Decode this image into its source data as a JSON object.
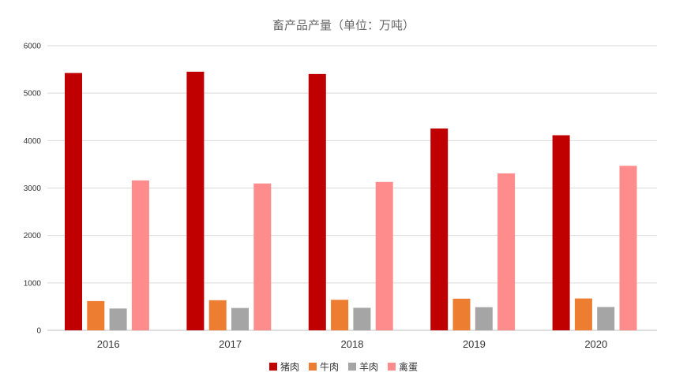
{
  "chart_data": {
    "type": "bar",
    "title": "畜产品产量（单位：万吨）",
    "categories": [
      "2016",
      "2017",
      "2018",
      "2019",
      "2020"
    ],
    "series": [
      {
        "name": "猪肉",
        "color": "#C00000",
        "values": [
          5425,
          5452,
          5404,
          4255,
          4113
        ]
      },
      {
        "name": "牛肉",
        "color": "#ED7D31",
        "values": [
          617,
          635,
          644,
          667,
          672
        ]
      },
      {
        "name": "羊肉",
        "color": "#A5A5A5",
        "values": [
          460,
          471,
          475,
          488,
          492
        ]
      },
      {
        "name": "禽蛋",
        "color": "#FF8C8C",
        "values": [
          3161,
          3096,
          3128,
          3309,
          3468
        ]
      }
    ],
    "ylim": [
      0,
      6000
    ],
    "yticks": [
      0,
      1000,
      2000,
      3000,
      4000,
      5000,
      6000
    ],
    "grid": true,
    "legend": "bottom"
  }
}
